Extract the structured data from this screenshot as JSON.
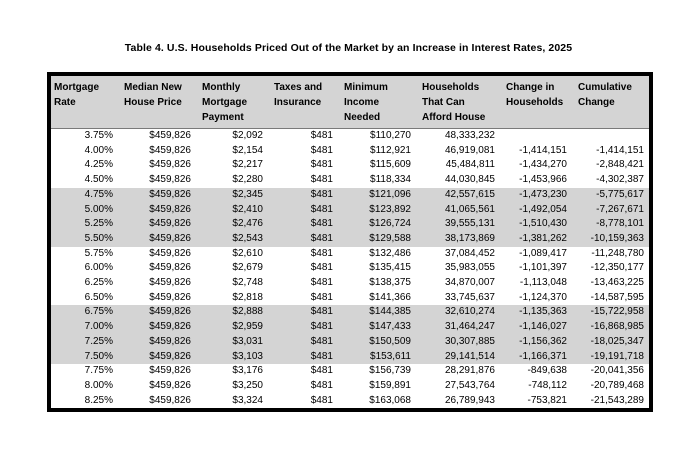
{
  "title": "Table 4. U.S. Households Priced Out of the Market by an Increase in Interest Rates, 2025",
  "colors": {
    "header_bg": "#d4d4d4",
    "shaded_row_bg": "#d4d4d4",
    "table_border": "#000000",
    "text": "#000000",
    "page_bg": "#ffffff"
  },
  "table": {
    "columns": [
      {
        "id": "mortgage-rate",
        "lines": [
          "Mortgage",
          "Rate"
        ]
      },
      {
        "id": "median-new-house-price",
        "lines": [
          "Median New",
          "House Price"
        ]
      },
      {
        "id": "monthly-mortgage-payment",
        "lines": [
          "Monthly",
          "Mortgage",
          "Payment"
        ]
      },
      {
        "id": "taxes-and-insurance",
        "lines": [
          "Taxes and",
          "Insurance"
        ]
      },
      {
        "id": "minimum-income-needed",
        "lines": [
          "Minimum",
          "Income",
          "Needed"
        ]
      },
      {
        "id": "households-that-can-afford-house",
        "lines": [
          "Households",
          "That Can",
          "Afford House"
        ]
      },
      {
        "id": "change-in-households",
        "lines": [
          "Change in",
          "Households"
        ]
      },
      {
        "id": "cumulative-change",
        "lines": [
          "Cumulative",
          "Change"
        ]
      }
    ],
    "rows": [
      {
        "shaded": false,
        "cells": [
          "3.75%",
          "$459,826",
          "$2,092",
          "$481",
          "$110,270",
          "48,333,232",
          "",
          ""
        ]
      },
      {
        "shaded": false,
        "cells": [
          "4.00%",
          "$459,826",
          "$2,154",
          "$481",
          "$112,921",
          "46,919,081",
          "-1,414,151",
          "-1,414,151"
        ]
      },
      {
        "shaded": false,
        "cells": [
          "4.25%",
          "$459,826",
          "$2,217",
          "$481",
          "$115,609",
          "45,484,811",
          "-1,434,270",
          "-2,848,421"
        ]
      },
      {
        "shaded": false,
        "cells": [
          "4.50%",
          "$459,826",
          "$2,280",
          "$481",
          "$118,334",
          "44,030,845",
          "-1,453,966",
          "-4,302,387"
        ]
      },
      {
        "shaded": true,
        "cells": [
          "4.75%",
          "$459,826",
          "$2,345",
          "$481",
          "$121,096",
          "42,557,615",
          "-1,473,230",
          "-5,775,617"
        ]
      },
      {
        "shaded": true,
        "cells": [
          "5.00%",
          "$459,826",
          "$2,410",
          "$481",
          "$123,892",
          "41,065,561",
          "-1,492,054",
          "-7,267,671"
        ]
      },
      {
        "shaded": true,
        "cells": [
          "5.25%",
          "$459,826",
          "$2,476",
          "$481",
          "$126,724",
          "39,555,131",
          "-1,510,430",
          "-8,778,101"
        ]
      },
      {
        "shaded": true,
        "cells": [
          "5.50%",
          "$459,826",
          "$2,543",
          "$481",
          "$129,588",
          "38,173,869",
          "-1,381,262",
          "-10,159,363"
        ]
      },
      {
        "shaded": false,
        "cells": [
          "5.75%",
          "$459,826",
          "$2,610",
          "$481",
          "$132,486",
          "37,084,452",
          "-1,089,417",
          "-11,248,780"
        ]
      },
      {
        "shaded": false,
        "cells": [
          "6.00%",
          "$459,826",
          "$2,679",
          "$481",
          "$135,415",
          "35,983,055",
          "-1,101,397",
          "-12,350,177"
        ]
      },
      {
        "shaded": false,
        "cells": [
          "6.25%",
          "$459,826",
          "$2,748",
          "$481",
          "$138,375",
          "34,870,007",
          "-1,113,048",
          "-13,463,225"
        ]
      },
      {
        "shaded": false,
        "cells": [
          "6.50%",
          "$459,826",
          "$2,818",
          "$481",
          "$141,366",
          "33,745,637",
          "-1,124,370",
          "-14,587,595"
        ]
      },
      {
        "shaded": true,
        "cells": [
          "6.75%",
          "$459,826",
          "$2,888",
          "$481",
          "$144,385",
          "32,610,274",
          "-1,135,363",
          "-15,722,958"
        ]
      },
      {
        "shaded": true,
        "cells": [
          "7.00%",
          "$459,826",
          "$2,959",
          "$481",
          "$147,433",
          "31,464,247",
          "-1,146,027",
          "-16,868,985"
        ]
      },
      {
        "shaded": true,
        "cells": [
          "7.25%",
          "$459,826",
          "$3,031",
          "$481",
          "$150,509",
          "30,307,885",
          "-1,156,362",
          "-18,025,347"
        ]
      },
      {
        "shaded": true,
        "cells": [
          "7.50%",
          "$459,826",
          "$3,103",
          "$481",
          "$153,611",
          "29,141,514",
          "-1,166,371",
          "-19,191,718"
        ]
      },
      {
        "shaded": false,
        "cells": [
          "7.75%",
          "$459,826",
          "$3,176",
          "$481",
          "$156,739",
          "28,291,876",
          "-849,638",
          "-20,041,356"
        ]
      },
      {
        "shaded": false,
        "cells": [
          "8.00%",
          "$459,826",
          "$3,250",
          "$481",
          "$159,891",
          "27,543,764",
          "-748,112",
          "-20,789,468"
        ]
      },
      {
        "shaded": false,
        "cells": [
          "8.25%",
          "$459,826",
          "$3,324",
          "$481",
          "$163,068",
          "26,789,943",
          "-753,821",
          "-21,543,289"
        ]
      }
    ]
  }
}
